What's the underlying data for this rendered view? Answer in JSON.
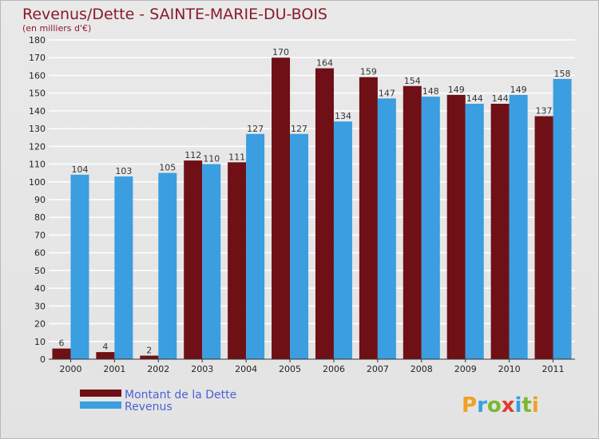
{
  "title": "Revenus/Dette - SAINTE-MARIE-DU-BOIS",
  "subtitle": "(en milliers d'€)",
  "logo_text": "Proxiti",
  "colors": {
    "dette": "#6e1016",
    "revenus": "#3a9ee0",
    "grid": "#ffffff",
    "title": "#8b1a2b",
    "legend": "#4a62d6"
  },
  "chart_data": {
    "type": "bar",
    "categories": [
      "2000",
      "2001",
      "2002",
      "2003",
      "2004",
      "2005",
      "2006",
      "2007",
      "2008",
      "2009",
      "2010",
      "2011"
    ],
    "series": [
      {
        "name": "Montant de la Dette",
        "values": [
          6,
          4,
          2,
          112,
          111,
          170,
          164,
          159,
          154,
          149,
          144,
          137
        ]
      },
      {
        "name": "Revenus",
        "values": [
          104,
          103,
          105,
          110,
          127,
          127,
          134,
          147,
          148,
          144,
          149,
          158
        ]
      }
    ],
    "yticks": [
      0,
      10,
      20,
      30,
      40,
      50,
      60,
      70,
      80,
      90,
      100,
      110,
      120,
      130,
      140,
      150,
      160,
      170,
      180
    ],
    "ylim": [
      0,
      180
    ],
    "grid": true,
    "legend_position": "bottom-left"
  }
}
